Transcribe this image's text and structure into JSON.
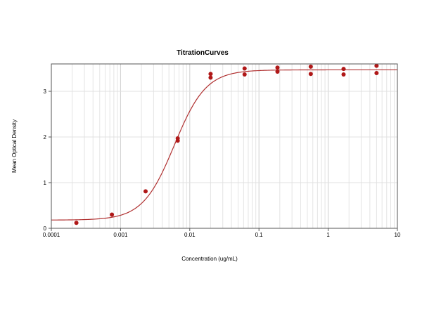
{
  "chart_data": {
    "type": "scatter",
    "title": "TitrationCurves",
    "xlabel": "Concentration (ug/mL)",
    "ylabel": "Mean Optical Density",
    "x_scale": "log",
    "xlim": [
      0.0001,
      10
    ],
    "ylim": [
      0,
      3.6
    ],
    "x_ticks": [
      0.0001,
      0.001,
      0.01,
      0.1,
      1,
      10
    ],
    "x_tick_labels": [
      "0.0001",
      "0.001",
      "0.01",
      "0.1",
      "1",
      "10"
    ],
    "y_ticks": [
      0,
      1,
      2,
      3
    ],
    "y_tick_labels": [
      "0",
      "1",
      "2",
      "3"
    ],
    "grid": true,
    "legend": "none",
    "point_color": "#b01818",
    "curve_color": "#b03030",
    "points": [
      {
        "x": 0.00023,
        "y": 0.12
      },
      {
        "x": 0.00075,
        "y": 0.3
      },
      {
        "x": 0.0023,
        "y": 0.81
      },
      {
        "x": 0.0067,
        "y": 1.92
      },
      {
        "x": 0.0067,
        "y": 1.97
      },
      {
        "x": 0.02,
        "y": 3.3
      },
      {
        "x": 0.02,
        "y": 3.38
      },
      {
        "x": 0.062,
        "y": 3.37
      },
      {
        "x": 0.062,
        "y": 3.5
      },
      {
        "x": 0.185,
        "y": 3.43
      },
      {
        "x": 0.185,
        "y": 3.52
      },
      {
        "x": 0.56,
        "y": 3.38
      },
      {
        "x": 0.56,
        "y": 3.54
      },
      {
        "x": 1.67,
        "y": 3.37
      },
      {
        "x": 1.67,
        "y": 3.49
      },
      {
        "x": 5.0,
        "y": 3.4
      },
      {
        "x": 5.0,
        "y": 3.56
      }
    ],
    "fit_curve": {
      "model": "4PL",
      "bottom": 0.18,
      "top": 3.47,
      "ec50": 0.006,
      "hill": 1.9
    }
  }
}
